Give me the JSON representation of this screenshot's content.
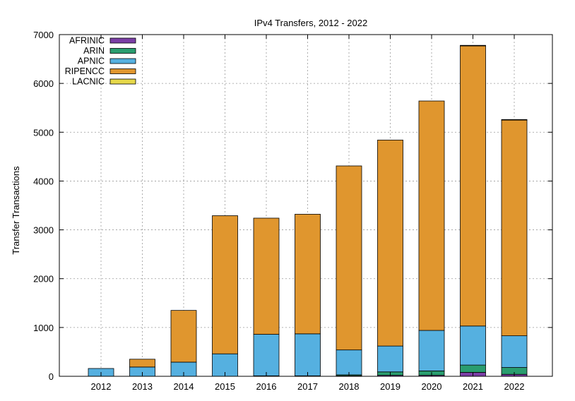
{
  "chart_data": {
    "type": "bar",
    "stacked": true,
    "title": "IPv4 Transfers, 2012 - 2022",
    "xlabel": "",
    "ylabel": "Transfer Transactions",
    "ylim": [
      0,
      7000
    ],
    "yticks": [
      0,
      1000,
      2000,
      3000,
      4000,
      5000,
      6000,
      7000
    ],
    "categories": [
      "2012",
      "2013",
      "2014",
      "2015",
      "2016",
      "2017",
      "2018",
      "2019",
      "2020",
      "2021",
      "2022"
    ],
    "grid": true,
    "legend_position": "top-left",
    "series": [
      {
        "name": "AFRINIC",
        "color": "#7b3fa6",
        "values": [
          0,
          0,
          0,
          0,
          0,
          0,
          10,
          20,
          20,
          80,
          40
        ]
      },
      {
        "name": "ARIN",
        "color": "#2a9d6f",
        "values": [
          0,
          0,
          0,
          0,
          10,
          10,
          20,
          70,
          90,
          150,
          140
        ]
      },
      {
        "name": "APNIC",
        "color": "#55b0e0",
        "values": [
          160,
          190,
          290,
          460,
          850,
          860,
          510,
          530,
          830,
          800,
          650
        ]
      },
      {
        "name": "RIPENCC",
        "color": "#e0962e",
        "values": [
          0,
          160,
          1060,
          2830,
          2380,
          2450,
          3770,
          4220,
          4700,
          5740,
          4420
        ]
      },
      {
        "name": "LACNIC",
        "color": "#e6d84a",
        "values": [
          0,
          0,
          0,
          0,
          0,
          0,
          0,
          0,
          0,
          10,
          10
        ]
      }
    ]
  }
}
